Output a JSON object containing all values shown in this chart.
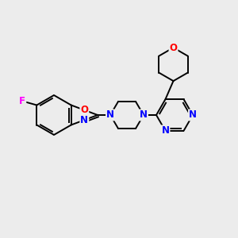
{
  "background_color": "#ececec",
  "bond_color": "#000000",
  "atom_colors": {
    "N": "#0000ff",
    "O": "#ff0000",
    "F": "#ff00ff",
    "C": "#000000"
  },
  "figsize": [
    3.0,
    3.0
  ],
  "dpi": 100
}
